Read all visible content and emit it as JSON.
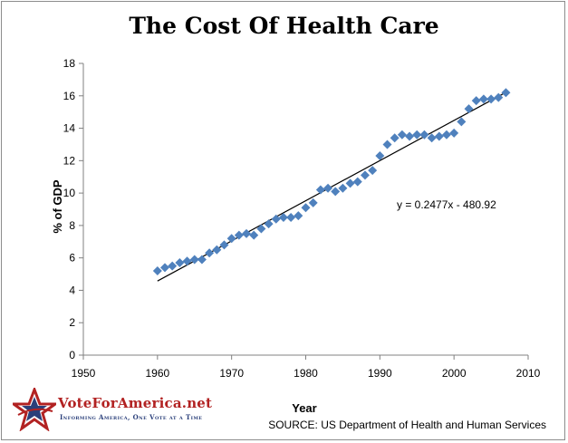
{
  "chart_data": {
    "type": "scatter",
    "title": "The Cost Of Health Care",
    "xlabel": "Year",
    "ylabel": "% of GDP",
    "xlim": [
      1950,
      2010
    ],
    "ylim": [
      0,
      18
    ],
    "x_ticks": [
      1950,
      1960,
      1970,
      1980,
      1990,
      2000,
      2010
    ],
    "y_ticks": [
      0,
      2,
      4,
      6,
      8,
      10,
      12,
      14,
      16,
      18
    ],
    "series": [
      {
        "name": "% of GDP",
        "color": "#4f81bd",
        "marker": "diamond",
        "x": [
          1960,
          1961,
          1962,
          1963,
          1964,
          1965,
          1966,
          1967,
          1968,
          1969,
          1970,
          1971,
          1972,
          1973,
          1974,
          1975,
          1976,
          1977,
          1978,
          1979,
          1980,
          1981,
          1982,
          1983,
          1984,
          1985,
          1986,
          1987,
          1988,
          1989,
          1990,
          1991,
          1992,
          1993,
          1994,
          1995,
          1996,
          1997,
          1998,
          1999,
          2000,
          2001,
          2002,
          2003,
          2004,
          2005,
          2006,
          2007
        ],
        "y": [
          5.2,
          5.4,
          5.5,
          5.7,
          5.8,
          5.9,
          5.9,
          6.3,
          6.5,
          6.8,
          7.2,
          7.4,
          7.5,
          7.4,
          7.8,
          8.1,
          8.4,
          8.5,
          8.5,
          8.6,
          9.1,
          9.4,
          10.2,
          10.3,
          10.1,
          10.3,
          10.6,
          10.7,
          11.1,
          11.4,
          12.3,
          13.0,
          13.4,
          13.6,
          13.5,
          13.6,
          13.6,
          13.4,
          13.5,
          13.6,
          13.7,
          14.4,
          15.2,
          15.7,
          15.8,
          15.8,
          15.9,
          16.2
        ]
      }
    ],
    "trendline": {
      "slope": 0.2477,
      "intercept": -480.92,
      "x_start": 1960,
      "x_end": 2007,
      "color": "#000000"
    },
    "equation_label": "y = 0.2477x - 480.92",
    "grid": false,
    "legend": "none"
  },
  "source_text": "SOURCE: US Department of Health and Human Services",
  "logo": {
    "name": "VoteForAmerica.net",
    "tagline": "Informing America, One Vote at a Time",
    "colors": {
      "red": "#b22222",
      "blue": "#2a3f7a"
    }
  }
}
